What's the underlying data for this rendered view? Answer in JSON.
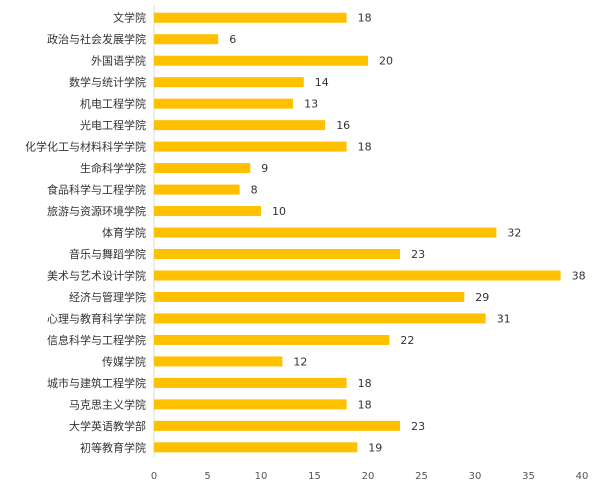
{
  "chart_data": {
    "type": "bar",
    "orientation": "horizontal",
    "title": "",
    "xlabel": "",
    "ylabel": "",
    "categories": [
      "文学院",
      "政治与社会发展学院",
      "外国语学院",
      "数学与统计学院",
      "机电工程学院",
      "光电工程学院",
      "化学化工与材料科学学院",
      "生命科学学院",
      "食品科学与工程学院",
      "旅游与资源环境学院",
      "体育学院",
      "音乐与舞蹈学院",
      "美术与艺术设计学院",
      "经济与管理学院",
      "心理与教育科学学院",
      "信息科学与工程学院",
      "传媒学院",
      "城市与建筑工程学院",
      "马克思主义学院",
      "大学英语教学部",
      "初等教育学院"
    ],
    "values": [
      18,
      6,
      20,
      14,
      13,
      16,
      18,
      9,
      8,
      10,
      32,
      23,
      38,
      29,
      31,
      22,
      12,
      18,
      18,
      23,
      19
    ],
    "xlim": [
      0,
      40
    ],
    "xticks": [
      0,
      5,
      10,
      15,
      20,
      25,
      30,
      35,
      40
    ],
    "grid": false,
    "legend": "none",
    "bar_color": "#FFC000",
    "axis_color": "#D9D9D9"
  }
}
